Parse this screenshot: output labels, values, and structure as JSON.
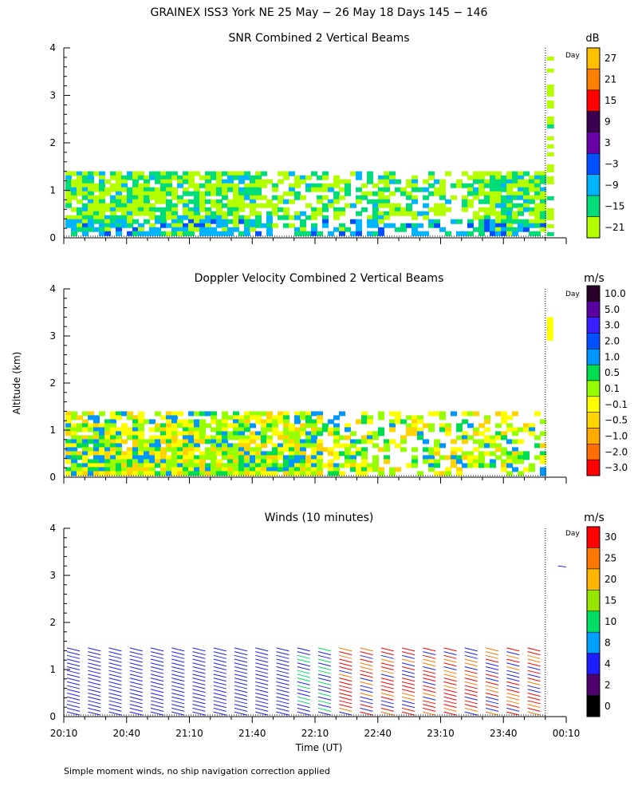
{
  "figure": {
    "title": "GRAINEX ISS3 York NE  25 May − 26 May 18 Days 145 − 146",
    "xlabel": "Time (UT)",
    "ylabel": "Altitude (km)",
    "footnote": "Simple moment winds, no ship navigation correction applied",
    "day_marker_label": "Day",
    "x_ticks": [
      "20:10",
      "20:40",
      "21:10",
      "21:40",
      "22:10",
      "22:40",
      "23:10",
      "23:40",
      "00:10"
    ],
    "y_ticks": [
      "0",
      "1",
      "2",
      "3",
      "4"
    ]
  },
  "chart_data": [
    {
      "type": "heatmap",
      "title": "SNR Combined 2 Vertical Beams",
      "xlabel": "Time (UT)",
      "ylabel": "Altitude (km)",
      "xlim_minutes_after_20_10": [
        0,
        240
      ],
      "ylim": [
        0,
        4
      ],
      "day_boundary_minutes": 230,
      "data_extent": {
        "lower_region_top_km": 1.4,
        "lower_region_end_minutes": 230,
        "upper_region_km": [
          0.1,
          3.9
        ]
      },
      "colorbar": {
        "unit": "dB",
        "levels": [
          "27",
          "21",
          "15",
          "9",
          "3",
          "−3",
          "−9",
          "−15",
          "−21"
        ],
        "colors": [
          "#ffbe00",
          "#ff7f00",
          "#ff0000",
          "#3c0050",
          "#6a00a8",
          "#0050ff",
          "#00b4ff",
          "#00dc78",
          "#b4ff00"
        ]
      },
      "dominant_colors": [
        "#b4ff00",
        "#00dc78",
        "#00b4ff",
        "#0050ff"
      ]
    },
    {
      "type": "heatmap",
      "title": "Doppler Velocity Combined 2 Vertical Beams",
      "xlabel": "Time (UT)",
      "ylabel": "Altitude (km)",
      "xlim_minutes_after_20_10": [
        0,
        240
      ],
      "ylim": [
        0,
        4
      ],
      "day_boundary_minutes": 230,
      "data_extent": {
        "lower_region_top_km": 1.4,
        "lower_region_end_minutes": 230,
        "isolated_patch_km": [
          2.9,
          3.4
        ]
      },
      "colorbar": {
        "unit": "m/s",
        "levels": [
          "10.0",
          "5.0",
          "3.0",
          "2.0",
          "1.0",
          "0.5",
          "0.1",
          "−0.1",
          "−0.5",
          "−1.0",
          "−2.0",
          "−3.0"
        ],
        "colors": [
          "#28002a",
          "#5a00a0",
          "#3a1eff",
          "#0050ff",
          "#0096ff",
          "#00dc50",
          "#96ff00",
          "#ffff00",
          "#ffd200",
          "#ffaa00",
          "#ff6e00",
          "#ff0000"
        ]
      },
      "dominant_colors": [
        "#96ff00",
        "#ffff00",
        "#ffd200",
        "#00dc50",
        "#0096ff"
      ]
    },
    {
      "type": "scatter",
      "subtype": "wind-barbs",
      "title": "Winds (10 minutes)",
      "xlabel": "Time (UT)",
      "ylabel": "Altitude (km)",
      "xlim_minutes_after_20_10": [
        0,
        240
      ],
      "ylim": [
        0,
        4
      ],
      "day_boundary_minutes": 230,
      "profile_times_minutes": [
        0,
        10,
        20,
        30,
        40,
        50,
        60,
        70,
        80,
        90,
        100,
        110,
        120,
        130,
        140,
        150,
        160,
        170,
        180,
        190,
        200,
        210,
        220,
        230
      ],
      "barb_height_range_km": [
        0.1,
        1.5
      ],
      "upper_barb_km": 3.2,
      "colorbar": {
        "unit": "m/s",
        "levels": [
          "30",
          "25",
          "20",
          "15",
          "10",
          "8",
          "4",
          "2",
          "0"
        ],
        "colors": [
          "#ff0000",
          "#ff7800",
          "#ffb400",
          "#96e600",
          "#00dc64",
          "#00a0ff",
          "#1e1eff",
          "#50006e",
          "#000000"
        ]
      },
      "speed_trend": "blue (4-8 m/s) before 22:10, orange-red (20-30 m/s) after 22:20"
    }
  ]
}
